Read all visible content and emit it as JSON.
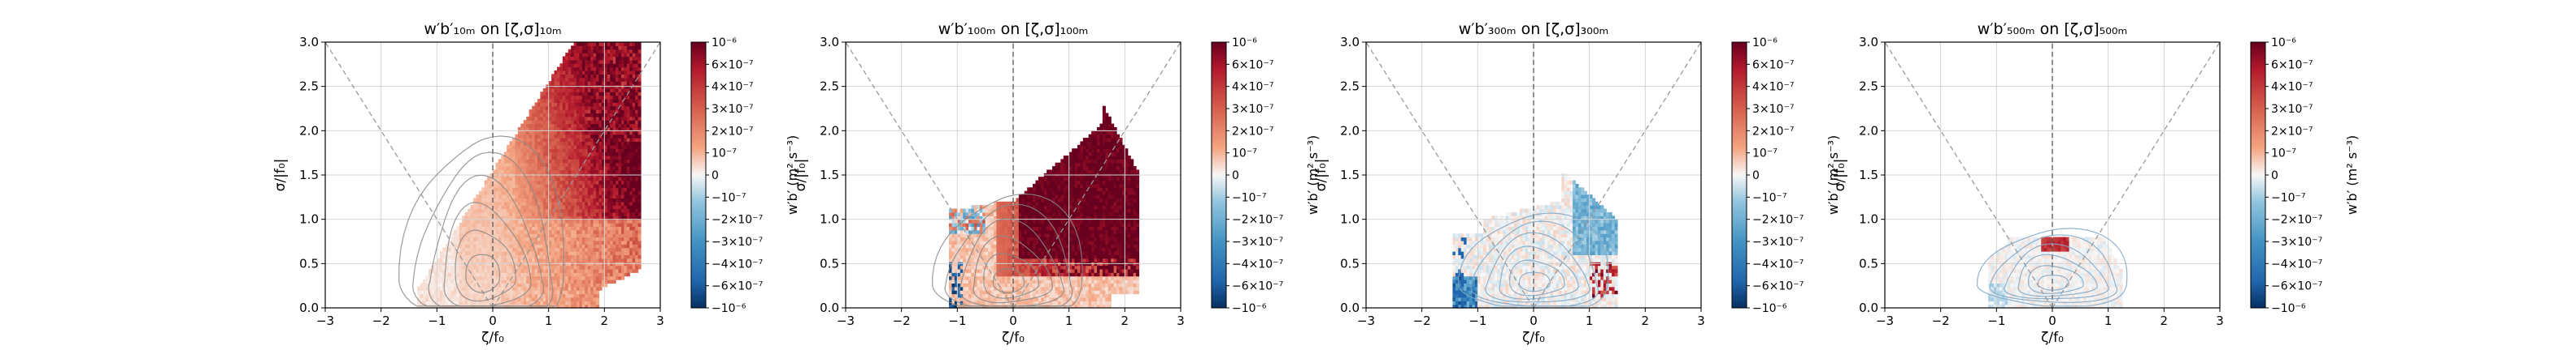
{
  "chart_data": [
    {
      "type": "heatmap",
      "title": "w′b′₁₀ₘ on [ζ,σ]₁₀ₘ",
      "xlabel": "ζ/f₀",
      "ylabel": "σ/|f₀|",
      "xlim": [
        -3,
        3
      ],
      "ylim": [
        0,
        3
      ],
      "xticks": [
        "−3",
        "−2",
        "−1",
        "0",
        "1",
        "2",
        "3"
      ],
      "yticks": [
        "0.0",
        "0.5",
        "1.0",
        "1.5",
        "2.0",
        "2.5",
        "3.0"
      ],
      "colorbar": {
        "label": "w′b′ (m² s⁻³)",
        "ticks": [
          "10⁻⁶",
          "6×10⁻⁷",
          "4×10⁻⁷",
          "3×10⁻⁷",
          "2×10⁻⁷",
          "10⁻⁷",
          "0",
          "−10⁻⁷",
          "−2×10⁻⁷",
          "−3×10⁻⁷",
          "−4×10⁻⁷",
          "−6×10⁻⁷",
          "−10⁻⁶"
        ]
      },
      "regime": "positive_strong_cyclonic",
      "contour_center": [
        -0.2,
        0.3
      ],
      "contour_scale": [
        1.1,
        1.9
      ],
      "grid": true
    },
    {
      "type": "heatmap",
      "title": "w′b′₁₀₀ₘ on [ζ,σ]₁₀₀ₘ",
      "xlabel": "ζ/f₀",
      "ylabel": "σ/|f₀|",
      "xlim": [
        -3,
        3
      ],
      "ylim": [
        0,
        3
      ],
      "xticks": [
        "−3",
        "−2",
        "−1",
        "0",
        "1",
        "2",
        "3"
      ],
      "yticks": [
        "0.0",
        "0.5",
        "1.0",
        "1.5",
        "2.0",
        "2.5",
        "3.0"
      ],
      "colorbar": {
        "label": "w′b′ (m² s⁻³)",
        "ticks": [
          "10⁻⁶",
          "6×10⁻⁷",
          "4×10⁻⁷",
          "3×10⁻⁷",
          "2×10⁻⁷",
          "10⁻⁷",
          "0",
          "−10⁻⁷",
          "−2×10⁻⁷",
          "−3×10⁻⁷",
          "−4×10⁻⁷",
          "−6×10⁻⁷",
          "−10⁻⁶"
        ]
      },
      "regime": "saturated_positive_core",
      "contour_center": [
        -0.1,
        0.25
      ],
      "contour_scale": [
        1.0,
        1.2
      ],
      "grid": true
    },
    {
      "type": "heatmap",
      "title": "w′b′₃₀₀ₘ on [ζ,σ]₃₀₀ₘ",
      "xlabel": "ζ/f₀",
      "ylabel": "σ/|f₀|",
      "xlim": [
        -3,
        3
      ],
      "ylim": [
        0,
        3
      ],
      "xticks": [
        "−3",
        "−2",
        "−1",
        "0",
        "1",
        "2",
        "3"
      ],
      "yticks": [
        "0.0",
        "0.5",
        "1.0",
        "1.5",
        "2.0",
        "2.5",
        "3.0"
      ],
      "colorbar": {
        "label": "w′b′ (m² s⁻³)",
        "ticks": [
          "10⁻⁶",
          "6×10⁻⁷",
          "4×10⁻⁷",
          "3×10⁻⁷",
          "2×10⁻⁷",
          "10⁻⁷",
          "0",
          "−10⁻⁷",
          "−2×10⁻⁷",
          "−3×10⁻⁷",
          "−4×10⁻⁷",
          "−6×10⁻⁷",
          "−10⁻⁶"
        ]
      },
      "regime": "weak_mixed",
      "contour_center": [
        0.0,
        0.25
      ],
      "contour_scale": [
        1.0,
        0.95
      ],
      "grid": true
    },
    {
      "type": "heatmap",
      "title": "w′b′₅₀₀ₘ on [ζ,σ]₅₀₀ₘ",
      "xlabel": "ζ/f₀",
      "ylabel": "σ/|f₀|",
      "xlim": [
        -3,
        3
      ],
      "ylim": [
        0,
        3
      ],
      "xticks": [
        "−3",
        "−2",
        "−1",
        "0",
        "1",
        "2",
        "3"
      ],
      "yticks": [
        "0.0",
        "0.5",
        "1.0",
        "1.5",
        "2.0",
        "2.5",
        "3.0"
      ],
      "colorbar": {
        "label": "w′b′ (m² s⁻³)",
        "ticks": [
          "10⁻⁶",
          "6×10⁻⁷",
          "4×10⁻⁷",
          "3×10⁻⁷",
          "2×10⁻⁷",
          "10⁻⁷",
          "0",
          "−10⁻⁷",
          "−2×10⁻⁷",
          "−3×10⁻⁷",
          "−4×10⁻⁷",
          "−6×10⁻⁷",
          "−10⁻⁶"
        ]
      },
      "regime": "very_weak",
      "contour_center": [
        0.0,
        0.25
      ],
      "contour_scale": [
        1.0,
        0.75
      ],
      "grid": true
    }
  ],
  "colors": {
    "positive_max": "#67001f",
    "positive_mid": "#d6604d",
    "neutral": "#f7f7f7",
    "negative_mid": "#4393c3",
    "negative_max": "#053061",
    "grid": "#d3d3d3",
    "contour": "#888888",
    "guide_dashed": "#999999"
  }
}
